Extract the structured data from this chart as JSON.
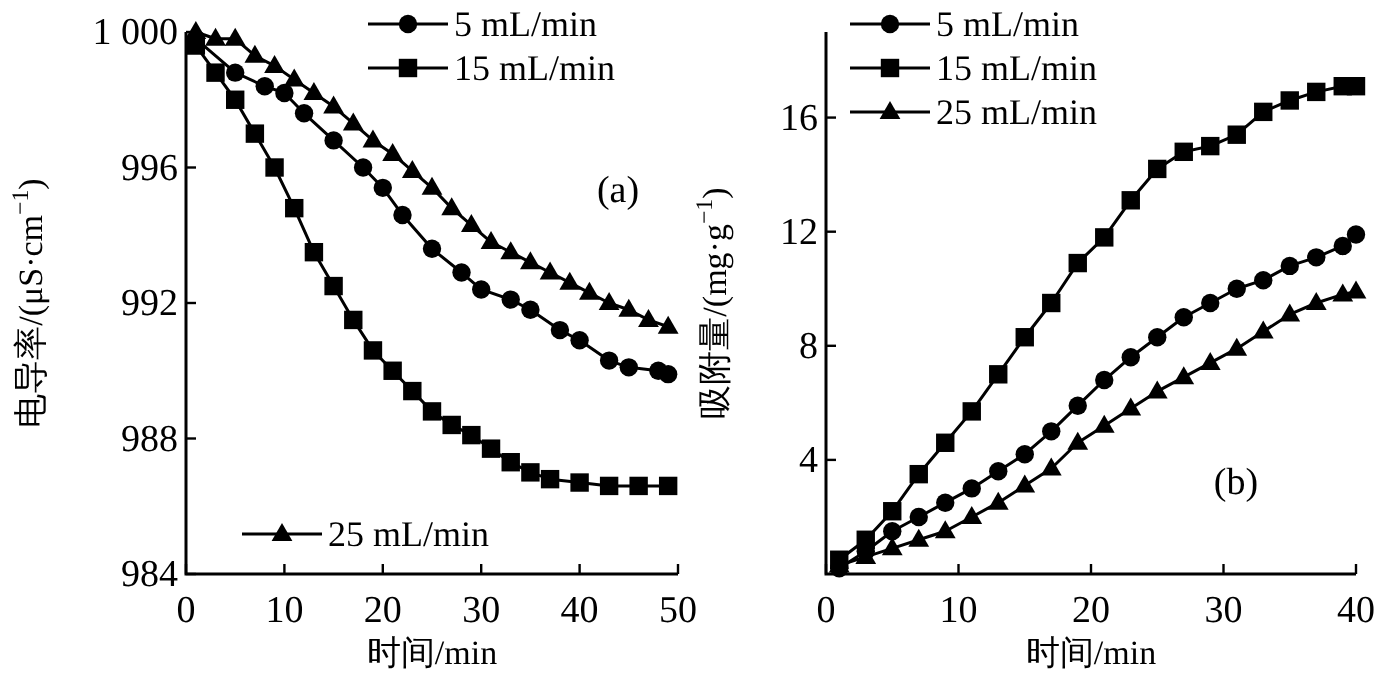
{
  "chart_data": [
    {
      "type": "line",
      "xlabel": "时间/min",
      "ylabel": "电导率/(μS·cm$^{−1}$)",
      "annotations": [
        "(a)"
      ],
      "xlim": [
        0,
        50
      ],
      "ylim": [
        984,
        1000
      ],
      "xticks": [
        0,
        10,
        20,
        30,
        40,
        50
      ],
      "yticks": [
        984,
        988,
        992,
        996,
        {
          "value": 1000,
          "label": "1 000"
        }
      ],
      "grid": false,
      "legend": "top right",
      "series": [
        {
          "name": "5 mL/min",
          "color": "#000000",
          "marker": "circle",
          "x": [
            1,
            5,
            8,
            10,
            12,
            15,
            18,
            20,
            22,
            25,
            28,
            30,
            33,
            35,
            38,
            40,
            43,
            45,
            48,
            49
          ],
          "values": [
            999.8,
            998.8,
            998.4,
            998.2,
            997.6,
            996.8,
            996.0,
            995.4,
            994.6,
            993.6,
            992.9,
            992.4,
            992.1,
            991.8,
            991.2,
            990.9,
            990.3,
            990.1,
            990.0,
            989.9
          ]
        },
        {
          "name": "15 mL/min",
          "color": "#000000",
          "marker": "square",
          "x": [
            1,
            3,
            5,
            7,
            9,
            11,
            13,
            15,
            17,
            19,
            21,
            23,
            25,
            27,
            29,
            31,
            33,
            35,
            37,
            40,
            43,
            46,
            49
          ],
          "values": [
            999.6,
            998.8,
            998.0,
            997.0,
            996.0,
            994.8,
            993.5,
            992.5,
            991.5,
            990.6,
            990.0,
            989.4,
            988.8,
            988.4,
            988.1,
            987.7,
            987.3,
            987.0,
            986.8,
            986.7,
            986.6,
            986.6,
            986.6
          ]
        },
        {
          "name": "25 mL/min",
          "color": "#000000",
          "marker": "triangle",
          "x": [
            1,
            3,
            5,
            7,
            9,
            11,
            13,
            15,
            17,
            19,
            21,
            23,
            25,
            27,
            29,
            31,
            33,
            35,
            37,
            39,
            41,
            43,
            45,
            47,
            49
          ],
          "values": [
            1000.0,
            999.8,
            999.8,
            999.3,
            999.0,
            998.6,
            998.2,
            997.8,
            997.3,
            996.8,
            996.4,
            995.9,
            995.4,
            994.8,
            994.3,
            993.8,
            993.5,
            993.2,
            992.9,
            992.6,
            992.3,
            992.0,
            991.8,
            991.5,
            991.3
          ]
        }
      ]
    },
    {
      "type": "line",
      "xlabel": "时间/min",
      "ylabel": "吸附量/(mg·g$^{−1}$)",
      "annotations": [
        "(b)"
      ],
      "xlim": [
        0,
        40
      ],
      "ylim": [
        0,
        19
      ],
      "xticks": [
        0,
        10,
        20,
        30,
        40
      ],
      "yticks": [
        4,
        8,
        12,
        16
      ],
      "grid": false,
      "legend": "top left",
      "series": [
        {
          "name": "5 mL/min",
          "color": "#000000",
          "marker": "circle",
          "x": [
            1,
            3,
            5,
            7,
            9,
            11,
            13,
            15,
            17,
            19,
            21,
            23,
            25,
            27,
            29,
            31,
            33,
            35,
            37,
            39,
            40
          ],
          "values": [
            0.2,
            0.8,
            1.5,
            2.0,
            2.5,
            3.0,
            3.6,
            4.2,
            5.0,
            5.9,
            6.8,
            7.6,
            8.3,
            9.0,
            9.5,
            10.0,
            10.3,
            10.8,
            11.1,
            11.5,
            11.9
          ]
        },
        {
          "name": "15 mL/min",
          "color": "#000000",
          "marker": "square",
          "x": [
            1,
            3,
            5,
            7,
            9,
            11,
            13,
            15,
            17,
            19,
            21,
            23,
            25,
            27,
            29,
            31,
            33,
            35,
            37,
            39,
            40
          ],
          "values": [
            0.5,
            1.2,
            2.2,
            3.5,
            4.6,
            5.7,
            7.0,
            8.3,
            9.5,
            10.9,
            11.8,
            13.1,
            14.2,
            14.8,
            15.0,
            15.4,
            16.2,
            16.6,
            16.9,
            17.1,
            17.1
          ]
        },
        {
          "name": "25 mL/min",
          "color": "#000000",
          "marker": "triangle",
          "x": [
            1,
            3,
            5,
            7,
            9,
            11,
            13,
            15,
            17,
            19,
            21,
            23,
            25,
            27,
            29,
            31,
            33,
            35,
            37,
            39,
            40
          ],
          "values": [
            0.3,
            0.6,
            0.9,
            1.2,
            1.5,
            2.0,
            2.5,
            3.1,
            3.7,
            4.6,
            5.2,
            5.8,
            6.4,
            6.9,
            7.4,
            7.9,
            8.5,
            9.1,
            9.5,
            9.8,
            9.9
          ]
        }
      ]
    }
  ]
}
